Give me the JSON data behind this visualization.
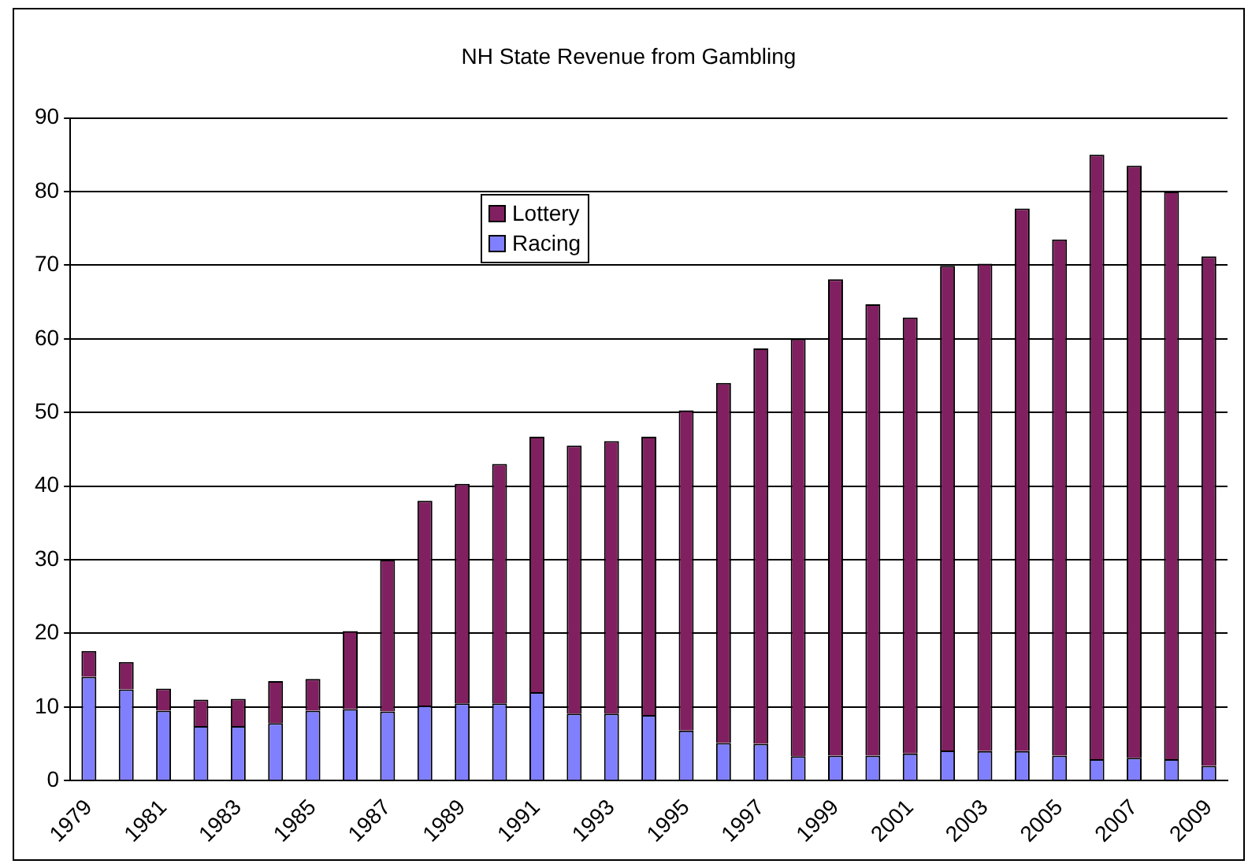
{
  "chart_data": {
    "type": "bar",
    "title": "NH State Revenue from Gambling",
    "stacked": true,
    "categories": [
      "1979",
      null,
      "1981",
      null,
      "1983",
      null,
      "1985",
      null,
      "1987",
      null,
      "1989",
      null,
      "1991",
      null,
      "1993",
      null,
      "1995",
      null,
      "1997",
      null,
      "1999",
      null,
      "2001",
      null,
      "2003",
      null,
      "2005",
      null,
      "2007",
      null,
      "2009"
    ],
    "series": [
      {
        "name": "Racing",
        "color": "#8080ff",
        "values": [
          14.1,
          12.4,
          9.5,
          7.4,
          7.4,
          7.8,
          9.5,
          9.7,
          9.4,
          10.2,
          10.5,
          10.5,
          12.0,
          9.1,
          9.1,
          8.9,
          6.8,
          5.1,
          5.0,
          3.3,
          3.4,
          3.4,
          3.7,
          4.1,
          4.0,
          4.0,
          3.4,
          2.9,
          3.1,
          2.9,
          2.0
        ]
      },
      {
        "name": "Lottery",
        "color": "#812060",
        "values": [
          3.5,
          3.7,
          3.0,
          3.6,
          3.7,
          5.7,
          4.3,
          10.6,
          20.6,
          27.8,
          29.8,
          32.5,
          34.7,
          36.4,
          37.0,
          37.8,
          43.5,
          48.9,
          53.7,
          56.7,
          64.7,
          61.3,
          59.2,
          65.8,
          66.2,
          73.7,
          70.1,
          82.1,
          80.4,
          77.1,
          69.2
        ]
      }
    ],
    "ylim": [
      0,
      90
    ],
    "yticks": [
      0,
      10,
      20,
      30,
      40,
      50,
      60,
      70,
      80,
      90
    ],
    "grid": "y",
    "legend": "top"
  }
}
